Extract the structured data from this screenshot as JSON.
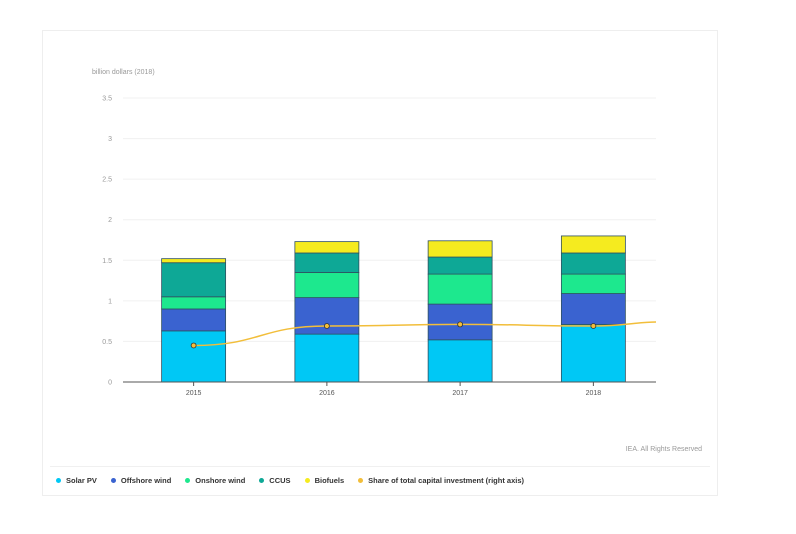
{
  "chart_data": {
    "type": "bar",
    "stacked": true,
    "ylabel": "billion dollars (2018)",
    "ylim": [
      0,
      3.5
    ],
    "yticks": [
      "0",
      "0.5",
      "1",
      "1.5",
      "2",
      "2.5",
      "3",
      "3.5"
    ],
    "categories": [
      "2015",
      "2016",
      "2017",
      "2018"
    ],
    "grid": true,
    "legend_position": "bottom",
    "series": [
      {
        "name": "Solar PV",
        "color": "#00c8f5",
        "values": [
          0.63,
          0.59,
          0.52,
          0.71
        ]
      },
      {
        "name": "Offshore wind",
        "color": "#3a63d0",
        "values": [
          0.27,
          0.45,
          0.44,
          0.38
        ]
      },
      {
        "name": "Onshore wind",
        "color": "#1de88e",
        "values": [
          0.15,
          0.31,
          0.37,
          0.24
        ]
      },
      {
        "name": "CCUS",
        "color": "#0ea896",
        "values": [
          0.42,
          0.24,
          0.21,
          0.26
        ]
      },
      {
        "name": "Biofuels",
        "color": "#f5eb1f",
        "values": [
          0.05,
          0.14,
          0.2,
          0.21
        ]
      }
    ],
    "line_series": {
      "name": "Share of total capital investment (right axis)",
      "color": "#f2be3a",
      "axis": "right",
      "values_on_left_scale": [
        0.45,
        0.69,
        0.71,
        0.69
      ]
    }
  },
  "footer": {
    "copyright": "IEA. All Rights Reserved"
  }
}
